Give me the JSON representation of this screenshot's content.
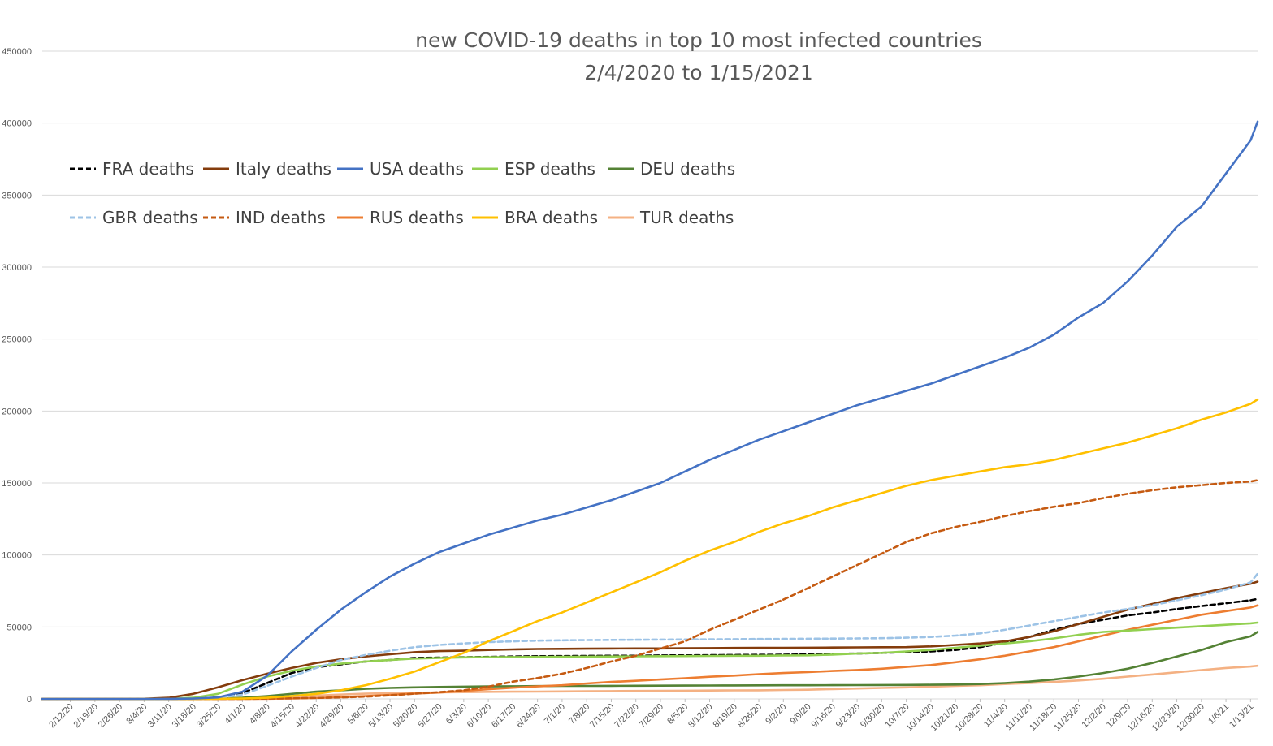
{
  "chart_data": {
    "type": "line",
    "title": "new COVID-19 deaths in top 10 most infected countries",
    "subtitle": "2/4/2020 to 1/15/2021",
    "xlabel": "",
    "ylabel": "",
    "ylim": [
      0,
      450000
    ],
    "yticks": [
      "0",
      "50000",
      "100000",
      "150000",
      "200000",
      "250000",
      "300000",
      "350000",
      "400000",
      "450000"
    ],
    "grid": true,
    "legend_position": "top-left",
    "x_tick_labels": [
      "2/12/20",
      "2/19/20",
      "2/26/20",
      "3/4/20",
      "3/11/20",
      "3/18/20",
      "3/25/20",
      "4/1/20",
      "4/8/20",
      "4/15/20",
      "4/22/20",
      "4/29/20",
      "5/6/20",
      "5/13/20",
      "5/20/20",
      "5/27/20",
      "6/3/20",
      "6/10/20",
      "6/17/20",
      "6/24/20",
      "7/1/20",
      "7/8/20",
      "7/15/20",
      "7/22/20",
      "7/29/20",
      "8/5/20",
      "8/12/20",
      "8/19/20",
      "8/26/20",
      "9/2/20",
      "9/9/20",
      "9/16/20",
      "9/23/20",
      "9/30/20",
      "10/7/20",
      "10/14/20",
      "10/21/20",
      "10/28/20",
      "11/4/20",
      "11/11/20",
      "11/18/20",
      "11/25/20",
      "12/2/20",
      "12/9/20",
      "12/16/20",
      "12/23/20",
      "12/30/20",
      "1/6/21",
      "1/13/21"
    ],
    "x": [
      "2/4/20",
      "2/12/20",
      "2/26/20",
      "3/4/20",
      "3/11/20",
      "3/18/20",
      "3/25/20",
      "4/1/20",
      "4/8/20",
      "4/15/20",
      "4/22/20",
      "4/29/20",
      "5/6/20",
      "5/13/20",
      "5/20/20",
      "5/27/20",
      "6/3/20",
      "6/10/20",
      "6/17/20",
      "6/24/20",
      "7/1/20",
      "7/8/20",
      "7/15/20",
      "7/22/20",
      "7/29/20",
      "8/5/20",
      "8/12/20",
      "8/19/20",
      "8/26/20",
      "9/2/20",
      "9/9/20",
      "9/16/20",
      "9/23/20",
      "9/30/20",
      "10/7/20",
      "10/14/20",
      "10/21/20",
      "10/28/20",
      "11/4/20",
      "11/11/20",
      "11/18/20",
      "11/25/20",
      "12/2/20",
      "12/9/20",
      "12/16/20",
      "12/23/20",
      "12/30/20",
      "1/6/21",
      "1/13/21",
      "1/15/21"
    ],
    "series": [
      {
        "name": "FRA deaths",
        "color": "#000000",
        "dash": true,
        "values": [
          0,
          0,
          0,
          0,
          0,
          100,
          1000,
          4000,
          11000,
          18000,
          22000,
          24000,
          26000,
          27000,
          28500,
          28700,
          29000,
          29200,
          29500,
          29700,
          29800,
          29900,
          30000,
          30000,
          30200,
          30300,
          30400,
          30500,
          30600,
          30700,
          31000,
          31300,
          31500,
          32000,
          32500,
          33000,
          34000,
          36000,
          39000,
          43000,
          48000,
          52000,
          55000,
          58000,
          60000,
          62500,
          64500,
          66500,
          68500,
          69500
        ]
      },
      {
        "name": "Italy deaths",
        "color": "#843c0c",
        "dash": false,
        "values": [
          0,
          0,
          0,
          100,
          800,
          3500,
          8000,
          13000,
          17500,
          21500,
          25000,
          27500,
          29500,
          31000,
          32500,
          33200,
          33500,
          34000,
          34400,
          34700,
          34800,
          34900,
          35000,
          35100,
          35100,
          35200,
          35300,
          35400,
          35500,
          35500,
          35600,
          35700,
          35800,
          35900,
          36000,
          36500,
          37500,
          38500,
          40000,
          43000,
          47000,
          52000,
          57000,
          62000,
          66000,
          70000,
          73500,
          77000,
          80000,
          81500
        ]
      },
      {
        "name": "USA deaths",
        "color": "#4472c4",
        "dash": false,
        "values": [
          0,
          0,
          0,
          0,
          30,
          200,
          1000,
          5000,
          16000,
          33000,
          48000,
          62000,
          74000,
          85000,
          94000,
          102000,
          108000,
          114000,
          119000,
          124000,
          128000,
          133000,
          138000,
          144000,
          150000,
          158000,
          166000,
          173000,
          180000,
          186000,
          192000,
          198000,
          204000,
          209000,
          214000,
          219000,
          225000,
          231000,
          237000,
          244000,
          253000,
          265000,
          275000,
          290000,
          308000,
          328000,
          342000,
          365000,
          388000,
          401000
        ]
      },
      {
        "name": "ESP deaths",
        "color": "#92d050",
        "dash": false,
        "values": [
          0,
          0,
          0,
          0,
          100,
          800,
          3500,
          10000,
          15500,
          19500,
          22500,
          24500,
          26000,
          27000,
          28000,
          28500,
          28900,
          29000,
          29100,
          29200,
          29300,
          29400,
          29500,
          29600,
          29700,
          29800,
          29900,
          30000,
          30000,
          30200,
          30300,
          30800,
          31500,
          32000,
          33000,
          34000,
          35500,
          37000,
          38500,
          40000,
          42000,
          44500,
          46500,
          47500,
          48500,
          49500,
          50500,
          51500,
          52500,
          53000
        ]
      },
      {
        "name": "DEU deaths",
        "color": "#548235",
        "dash": false,
        "values": [
          0,
          0,
          0,
          0,
          0,
          50,
          200,
          800,
          2000,
          3500,
          5000,
          6000,
          7000,
          7600,
          8000,
          8300,
          8500,
          8700,
          8800,
          8900,
          9000,
          9050,
          9100,
          9150,
          9200,
          9250,
          9300,
          9350,
          9400,
          9450,
          9500,
          9550,
          9600,
          9650,
          9700,
          9800,
          10000,
          10300,
          11000,
          12000,
          13500,
          15500,
          18000,
          21000,
          25000,
          29500,
          34000,
          39500,
          43500,
          46500
        ]
      },
      {
        "name": "GBR deaths",
        "color": "#9dc3e6",
        "dash": true,
        "values": [
          0,
          0,
          0,
          0,
          0,
          100,
          600,
          3000,
          9000,
          15500,
          21500,
          27000,
          30500,
          33500,
          36000,
          37500,
          38500,
          39500,
          40000,
          40500,
          40700,
          40900,
          41000,
          41100,
          41200,
          41300,
          41400,
          41500,
          41600,
          41700,
          41800,
          41900,
          42000,
          42200,
          42500,
          43000,
          44000,
          45500,
          48000,
          51000,
          54000,
          57000,
          60000,
          62500,
          65000,
          68500,
          72000,
          76000,
          81000,
          87000
        ]
      },
      {
        "name": "IND deaths",
        "color": "#c55a11",
        "dash": true,
        "values": [
          0,
          0,
          0,
          0,
          0,
          0,
          10,
          50,
          200,
          400,
          700,
          1000,
          1600,
          2500,
          3600,
          4700,
          6000,
          8500,
          12000,
          14500,
          17500,
          21500,
          26000,
          30000,
          35000,
          40000,
          48000,
          55000,
          62000,
          69000,
          77000,
          85000,
          93000,
          101000,
          109000,
          115000,
          119500,
          123000,
          127000,
          130500,
          133500,
          136000,
          139500,
          142500,
          145000,
          147000,
          148500,
          150000,
          151000,
          152000
        ]
      },
      {
        "name": "RUS deaths",
        "color": "#ed7d31",
        "dash": false,
        "values": [
          0,
          0,
          0,
          0,
          0,
          0,
          10,
          50,
          100,
          300,
          700,
          1200,
          2000,
          2800,
          3700,
          4400,
          5600,
          6700,
          7800,
          8700,
          9500,
          10700,
          11800,
          12600,
          13500,
          14400,
          15400,
          16200,
          17200,
          18000,
          18600,
          19400,
          20100,
          21000,
          22200,
          23500,
          25500,
          27500,
          30000,
          33000,
          36000,
          40000,
          44000,
          48000,
          51500,
          55000,
          58500,
          61000,
          63500,
          65000
        ]
      },
      {
        "name": "BRA deaths",
        "color": "#ffc000",
        "dash": false,
        "values": [
          0,
          0,
          0,
          0,
          0,
          10,
          100,
          300,
          800,
          2000,
          3500,
          6000,
          9500,
          14000,
          19000,
          25500,
          32000,
          40000,
          47000,
          54000,
          60000,
          67000,
          74000,
          81000,
          88000,
          96000,
          103000,
          109000,
          116000,
          122000,
          127000,
          133000,
          138000,
          143000,
          148000,
          152000,
          155000,
          158000,
          161000,
          163000,
          166000,
          170000,
          174000,
          178000,
          183000,
          188000,
          194000,
          199000,
          205000,
          208000
        ]
      },
      {
        "name": "TUR deaths",
        "color": "#f4b183",
        "dash": false,
        "values": [
          0,
          0,
          0,
          0,
          0,
          10,
          50,
          300,
          800,
          1500,
          2300,
          3000,
          3600,
          4000,
          4300,
          4500,
          4700,
          4900,
          5000,
          5100,
          5200,
          5300,
          5400,
          5500,
          5600,
          5700,
          5800,
          5900,
          6000,
          6200,
          6400,
          6800,
          7200,
          7600,
          8000,
          8500,
          9000,
          9500,
          10300,
          11000,
          11800,
          12800,
          14000,
          15500,
          17000,
          18500,
          20000,
          21500,
          22500,
          23000
        ]
      }
    ]
  }
}
